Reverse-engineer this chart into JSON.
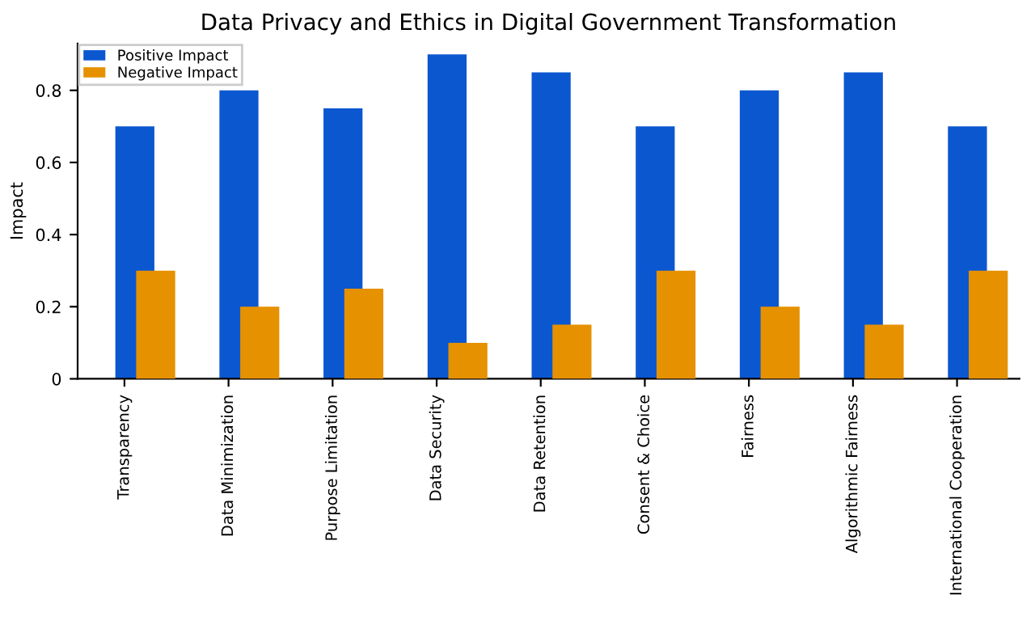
{
  "chart_data": {
    "type": "bar",
    "title": "Data Privacy and Ethics in Digital Government Transformation",
    "ylabel": "Impact",
    "categories": [
      "Transparency",
      "Data Minimization",
      "Purpose Limitation",
      "Data Security",
      "Data Retention",
      "Consent & Choice",
      "Fairness",
      "Algorithmic Fairness",
      "International Cooperation"
    ],
    "series": [
      {
        "name": "Positive Impact",
        "color": "#0b57d0",
        "values": [
          0.7,
          0.8,
          0.75,
          0.9,
          0.85,
          0.7,
          0.8,
          0.85,
          0.7
        ]
      },
      {
        "name": "Negative Impact",
        "color": "#e69100",
        "values": [
          0.3,
          0.2,
          0.25,
          0.1,
          0.15,
          0.3,
          0.2,
          0.15,
          0.3
        ]
      }
    ],
    "ylim": [
      0,
      0.93
    ],
    "yticks": [
      0,
      0.2,
      0.4,
      0.6,
      0.8
    ],
    "grid": false,
    "legend": "top left"
  }
}
